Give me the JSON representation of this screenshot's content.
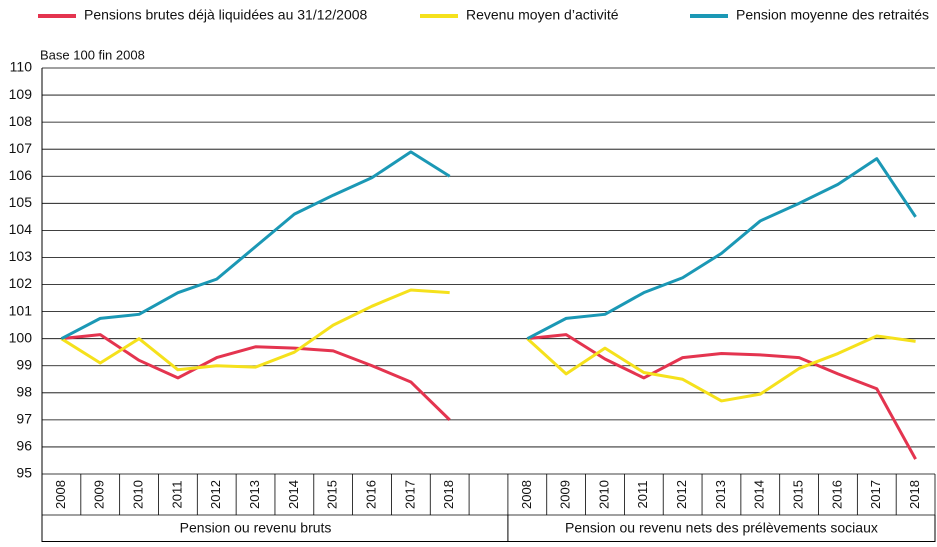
{
  "chart_data": {
    "type": "line",
    "ylabel": "Base 100 fin 2008",
    "categories": [
      "2008",
      "2009",
      "2010",
      "2011",
      "2012",
      "2013",
      "2014",
      "2015",
      "2016",
      "2017",
      "2018",
      null,
      "2008",
      "2009",
      "2010",
      "2011",
      "2012",
      "2013",
      "2014",
      "2015",
      "2016",
      "2017",
      "2018"
    ],
    "groups": [
      "Pension ou revenu bruts",
      "Pension ou revenu nets des prélèvements sociaux"
    ],
    "series": [
      {
        "name": "Pensions brutes déjà liquidées au 31/12/2008",
        "color": "#e4344f",
        "values": [
          100,
          100.15,
          99.2,
          98.55,
          99.3,
          99.7,
          99.65,
          99.55,
          99.0,
          98.4,
          97.0,
          null,
          100,
          100.15,
          99.25,
          98.55,
          99.3,
          99.45,
          99.4,
          99.3,
          98.7,
          98.15,
          95.55
        ]
      },
      {
        "name": "Revenu moyen d’activité",
        "color": "#f5e11c",
        "values": [
          100,
          99.1,
          100.0,
          98.85,
          99.0,
          98.95,
          99.5,
          100.5,
          101.2,
          101.8,
          101.7,
          null,
          100,
          98.7,
          99.65,
          98.75,
          98.5,
          97.7,
          97.95,
          98.9,
          99.45,
          100.1,
          99.9
        ]
      },
      {
        "name": "Pension moyenne des retraités",
        "color": "#1b98b5",
        "values": [
          100,
          100.75,
          100.9,
          101.7,
          102.2,
          103.4,
          104.6,
          105.3,
          105.95,
          106.9,
          106.0,
          null,
          100,
          100.75,
          100.9,
          101.7,
          102.25,
          103.15,
          104.35,
          105.0,
          105.7,
          106.65,
          104.5
        ]
      }
    ],
    "ylim": [
      95,
      110
    ],
    "yticks": [
      95,
      96,
      97,
      98,
      99,
      100,
      101,
      102,
      103,
      104,
      105,
      106,
      107,
      108,
      109,
      110
    ],
    "grid": true,
    "legend": "top"
  }
}
